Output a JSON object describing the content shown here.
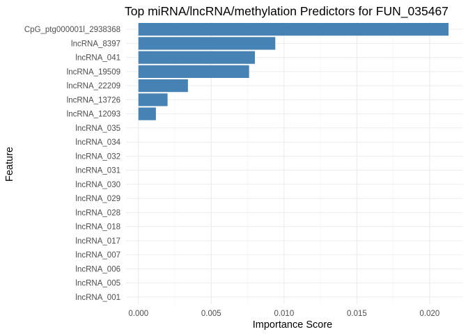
{
  "chart_data": {
    "type": "bar",
    "orientation": "horizontal",
    "title": "Top miRNA/lncRNA/methylation Predictors for FUN_035467",
    "xlabel": "Importance Score",
    "ylabel": "Feature",
    "xlim": [
      -0.00085,
      0.0223
    ],
    "xticks": [
      0.0,
      0.005,
      0.01,
      0.015,
      0.02
    ],
    "xtick_labels": [
      "0.000",
      "0.005",
      "0.010",
      "0.015",
      "0.020"
    ],
    "grid": true,
    "bar_color": "#4682B4",
    "categories": [
      "CpG_ptg000001l_2938368",
      "lncRNA_8397",
      "lncRNA_041",
      "lncRNA_19509",
      "lncRNA_22209",
      "lncRNA_13726",
      "lncRNA_12093",
      "lncRNA_035",
      "lncRNA_034",
      "lncRNA_032",
      "lncRNA_031",
      "lncRNA_030",
      "lncRNA_029",
      "lncRNA_028",
      "lncRNA_018",
      "lncRNA_017",
      "lncRNA_007",
      "lncRNA_006",
      "lncRNA_005",
      "lncRNA_001"
    ],
    "values": [
      0.0213,
      0.0094,
      0.008,
      0.0076,
      0.0034,
      0.002,
      0.0012,
      0,
      0,
      0,
      0,
      0,
      0,
      0,
      0,
      0,
      0,
      0,
      0,
      0
    ]
  }
}
